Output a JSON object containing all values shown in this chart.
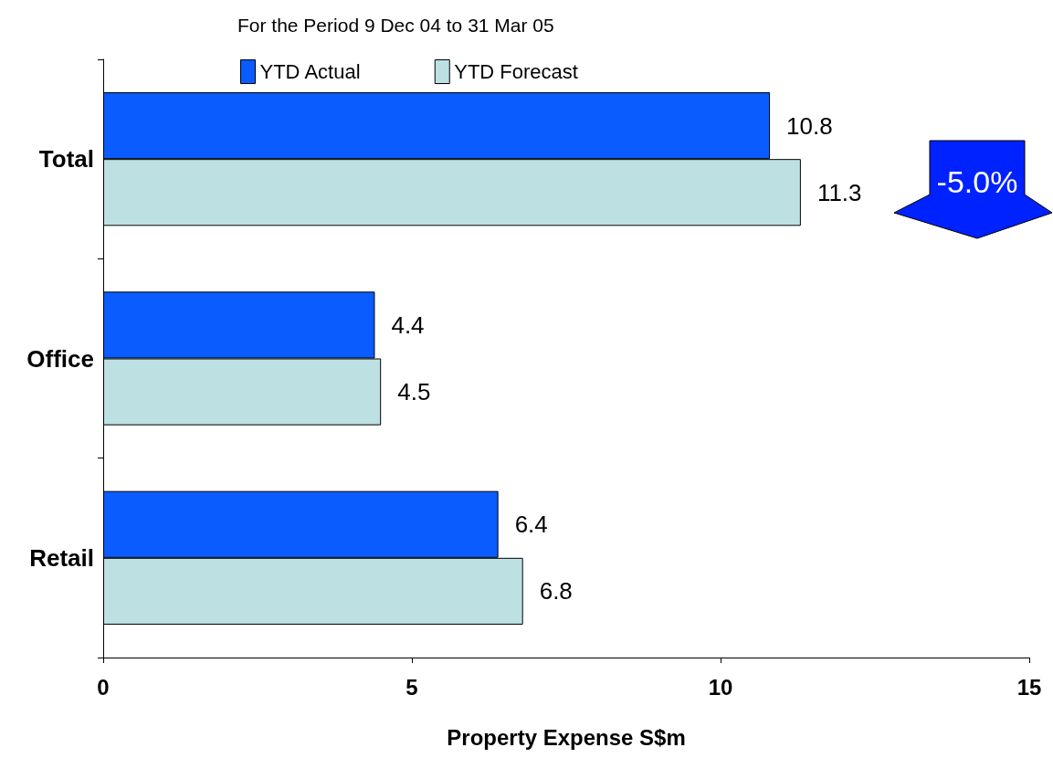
{
  "chart_data": {
    "type": "bar",
    "orientation": "horizontal",
    "title": "For the Period 9 Dec 04 to 31 Mar 05",
    "xlabel": "Property Expense S$m",
    "categories": [
      "Total",
      "Office",
      "Retail"
    ],
    "series": [
      {
        "name": "YTD Actual",
        "color": "#0a5cff",
        "values": [
          10.8,
          4.4,
          6.4
        ]
      },
      {
        "name": "YTD Forecast",
        "color": "#bde0e3",
        "values": [
          11.3,
          4.5,
          6.8
        ]
      }
    ],
    "xlim": [
      0,
      15
    ],
    "xticks": [
      0,
      5,
      10,
      15
    ],
    "data_labels": true,
    "grid": false,
    "legend": "top",
    "annotations": [
      "-5.0%"
    ]
  }
}
